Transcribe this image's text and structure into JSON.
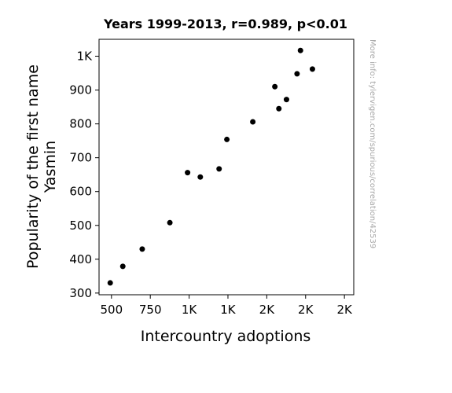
{
  "chart_data": {
    "type": "scatter",
    "title": "Years 1999-2013, r=0.989, p<0.01",
    "xlabel": "Intercountry adoptions",
    "ylabel_lines": [
      "Popularity of the first name",
      "Yasmin"
    ],
    "xlim": [
      420,
      2060
    ],
    "ylim": [
      295,
      1050
    ],
    "x_ticks": [
      {
        "value": 500,
        "label": "500"
      },
      {
        "value": 750,
        "label": "750"
      },
      {
        "value": 1000,
        "label": "1K"
      },
      {
        "value": 1250,
        "label": "1K"
      },
      {
        "value": 1500,
        "label": "2K"
      },
      {
        "value": 1750,
        "label": "2K"
      },
      {
        "value": 2000,
        "label": "2K"
      }
    ],
    "y_ticks": [
      {
        "value": 300,
        "label": "300"
      },
      {
        "value": 400,
        "label": "400"
      },
      {
        "value": 500,
        "label": "500"
      },
      {
        "value": 600,
        "label": "600"
      },
      {
        "value": 700,
        "label": "700"
      },
      {
        "value": 800,
        "label": "800"
      },
      {
        "value": 900,
        "label": "900"
      },
      {
        "value": 1000,
        "label": "1K"
      }
    ],
    "points": [
      {
        "x": 492,
        "y": 330
      },
      {
        "x": 573,
        "y": 379
      },
      {
        "x": 698,
        "y": 430
      },
      {
        "x": 876,
        "y": 508
      },
      {
        "x": 990,
        "y": 656
      },
      {
        "x": 1072,
        "y": 643
      },
      {
        "x": 1193,
        "y": 667
      },
      {
        "x": 1243,
        "y": 754
      },
      {
        "x": 1410,
        "y": 806
      },
      {
        "x": 1552,
        "y": 910
      },
      {
        "x": 1578,
        "y": 845
      },
      {
        "x": 1627,
        "y": 872
      },
      {
        "x": 1695,
        "y": 948
      },
      {
        "x": 1717,
        "y": 1017
      },
      {
        "x": 1794,
        "y": 962
      }
    ],
    "grid": false,
    "marker_color": "#000000"
  },
  "watermark": "More info: tylervigen.com/spurious/correlation/42539"
}
